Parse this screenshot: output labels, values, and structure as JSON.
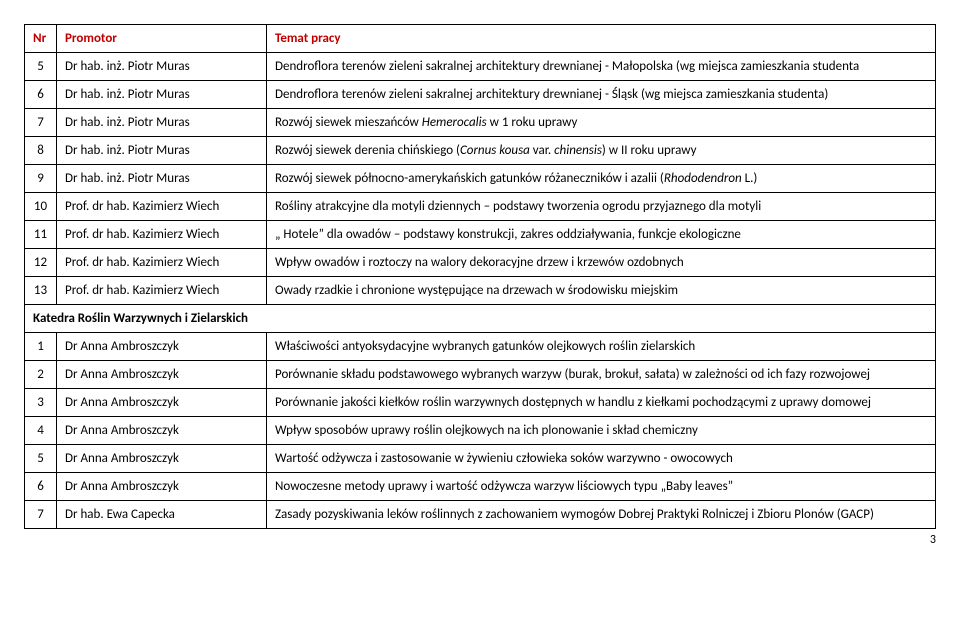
{
  "headers": {
    "nr": "Nr",
    "promotor": "Promotor",
    "temat": "Temat pracy"
  },
  "rows": [
    {
      "nr": "5",
      "promotor": "Dr  hab. inż. Piotr Muras",
      "temat": "Dendroflora terenów zieleni sakralnej architektury drewnianej  - Małopolska (wg miejsca zamieszkania studenta"
    },
    {
      "nr": "6",
      "promotor": "Dr  hab. inż. Piotr Muras",
      "temat": "Dendroflora terenów zieleni sakralnej architektury drewnianej  - Śląsk (wg miejsca zamieszkania studenta)"
    },
    {
      "nr": "7",
      "promotor": "Dr  hab. inż. Piotr Muras",
      "temat": "Rozwój siewek mieszańców <em>Hemerocalis</em> w 1 roku uprawy"
    },
    {
      "nr": "8",
      "promotor": "Dr  hab. inż. Piotr Muras",
      "temat": "Rozwój siewek derenia chińskiego (<em>Cornus kousa</em> var. <em>chinensis</em>) w II roku uprawy"
    },
    {
      "nr": "9",
      "promotor": "Dr  hab. inż. Piotr Muras",
      "temat": "Rozwój siewek północno-amerykańskich gatunków różaneczników i azalii (<em>Rhododendron</em> L.)"
    },
    {
      "nr": "10",
      "promotor": "Prof. dr hab. Kazimierz Wiech",
      "temat": "Rośliny atrakcyjne dla motyli dziennych – podstawy tworzenia ogrodu przyjaznego dla motyli"
    },
    {
      "nr": "11",
      "promotor": "Prof. dr hab. Kazimierz Wiech",
      "temat": "„ Hotele” dla owadów – podstawy konstrukcji, zakres oddziaływania, funkcje ekologiczne"
    },
    {
      "nr": "12",
      "promotor": "Prof. dr hab. Kazimierz Wiech",
      "temat": "Wpływ owadów i roztoczy na walory dekoracyjne drzew i krzewów ozdobnych"
    },
    {
      "nr": "13",
      "promotor": "Prof. dr hab. Kazimierz Wiech",
      "temat": "Owady rzadkie i chronione występujące na drzewach w środowisku miejskim"
    }
  ],
  "section": {
    "title": "Katedra Roślin Warzywnych i Zielarskich"
  },
  "rows2": [
    {
      "nr": "1",
      "promotor": "Dr Anna Ambroszczyk",
      "temat": "Właściwości antyoksydacyjne wybranych gatunków olejkowych roślin zielarskich"
    },
    {
      "nr": "2",
      "promotor": "Dr Anna Ambroszczyk",
      "temat": "Porównanie składu podstawowego wybranych warzyw (burak, brokuł, sałata) w zależności  od ich fazy rozwojowej"
    },
    {
      "nr": "3",
      "promotor": "Dr Anna Ambroszczyk",
      "temat": "Porównanie jakości kiełków roślin warzywnych dostępnych w handlu z kiełkami pochodzącymi z uprawy domowej"
    },
    {
      "nr": "4",
      "promotor": "Dr Anna Ambroszczyk",
      "temat": "Wpływ sposobów uprawy roślin olejkowych na ich plonowanie i skład chemiczny"
    },
    {
      "nr": "5",
      "promotor": "Dr Anna Ambroszczyk",
      "temat": "Wartość odżywcza  i zastosowanie w żywieniu człowieka soków warzywno - owocowych"
    },
    {
      "nr": "6",
      "promotor": "Dr Anna Ambroszczyk",
      "temat": "Nowoczesne metody uprawy i wartość odżywcza warzyw  liściowych typu „Baby leaves”"
    },
    {
      "nr": "7",
      "promotor": "Dr hab. Ewa Capecka",
      "temat": "Zasady pozyskiwania leków roślinnych z zachowaniem wymogów Dobrej Praktyki Rolniczej i Zbioru Plonów (GACP)"
    }
  ],
  "pageNumber": "3",
  "colors": {
    "header_text": "#c00000",
    "border": "#000000",
    "text": "#000000",
    "background": "#ffffff"
  },
  "typography": {
    "font_family": "Calibri, Arial, sans-serif",
    "body_fontsize_pt": 10,
    "header_weight": "bold"
  }
}
